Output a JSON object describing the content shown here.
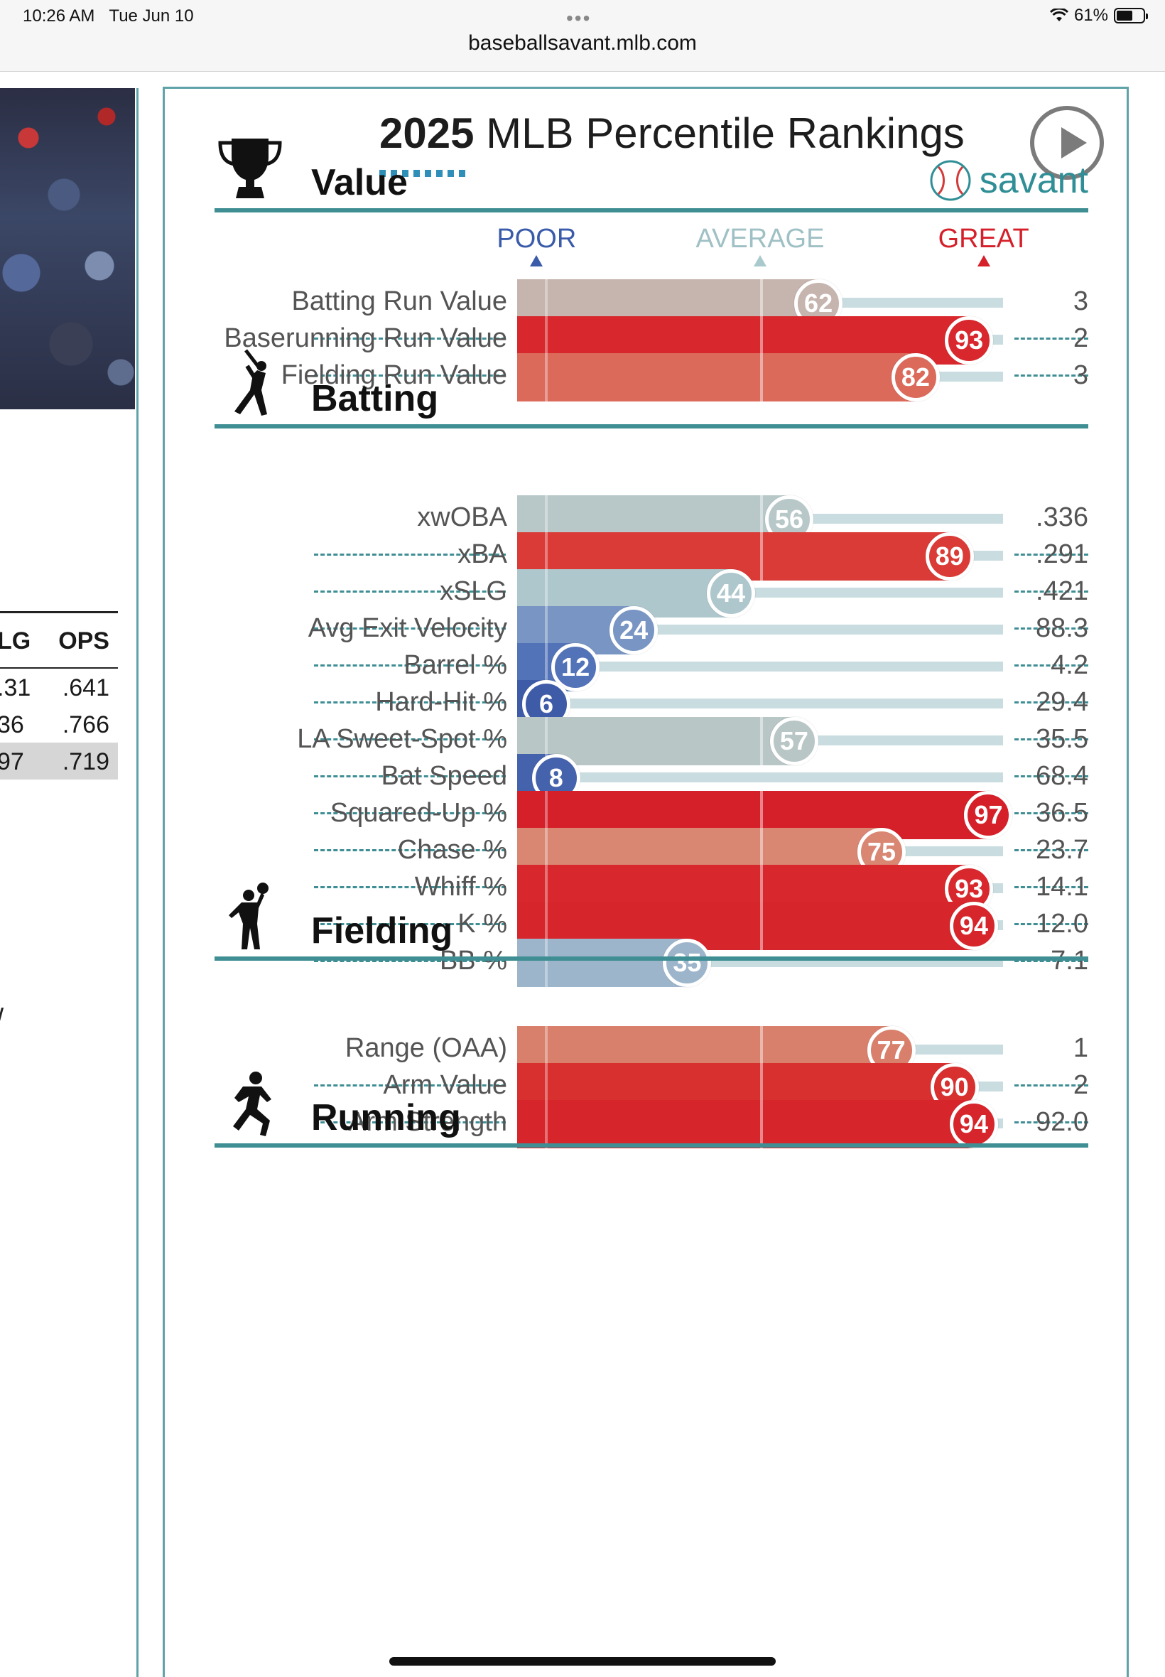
{
  "status_bar": {
    "time": "10:26 AM",
    "date": "Tue Jun 10",
    "battery": "61%",
    "battery_level": 0.61,
    "url": "baseballsavant.mlb.com"
  },
  "left_panel": {
    "table": {
      "headers": [
        "LG",
        "OPS"
      ],
      "rows": [
        [
          ".31",
          ".641"
        ],
        [
          "36",
          ".766"
        ],
        [
          "97",
          ".719"
        ]
      ]
    },
    "fragment": "/"
  },
  "card": {
    "title_year": "2025",
    "title_rest": "MLB Percentile Rankings",
    "logo_text": "savant",
    "scale": {
      "poor": "POOR",
      "average": "AVERAGE",
      "great": "GREAT"
    },
    "sections": [
      {
        "title": "Value",
        "icon": "trophy-icon",
        "metrics": [
          {
            "label": "Batting Run Value",
            "percentile": 62,
            "value": "3",
            "color": "#c6b4ae"
          },
          {
            "label": "Baserunning Run Value",
            "percentile": 93,
            "value": "2",
            "color": "#d8282d"
          },
          {
            "label": "Fielding Run Value",
            "percentile": 82,
            "value": "3",
            "color": "#db6a5b"
          }
        ]
      },
      {
        "title": "Batting",
        "icon": "batter-icon",
        "metrics": [
          {
            "label": "xwOBA",
            "percentile": 56,
            "value": ".336",
            "color": "#b8c8c9"
          },
          {
            "label": "xBA",
            "percentile": 89,
            "value": ".291",
            "color": "#da3b36"
          },
          {
            "label": "xSLG",
            "percentile": 44,
            "value": ".421",
            "color": "#aec7cc"
          },
          {
            "label": "Avg Exit Velocity",
            "percentile": 24,
            "value": "88.3",
            "color": "#7895c4"
          },
          {
            "label": "Barrel %",
            "percentile": 12,
            "value": "4.2",
            "color": "#5373b8"
          },
          {
            "label": "Hard-Hit %",
            "percentile": 6,
            "value": "29.4",
            "color": "#3e5ba8"
          },
          {
            "label": "LA Sweet-Spot %",
            "percentile": 57,
            "value": "35.5",
            "color": "#b9c6c6"
          },
          {
            "label": "Bat Speed",
            "percentile": 8,
            "value": "68.4",
            "color": "#4563ac"
          },
          {
            "label": "Squared-Up %",
            "percentile": 97,
            "value": "36.5",
            "color": "#d5202a"
          },
          {
            "label": "Chase %",
            "percentile": 75,
            "value": "23.7",
            "color": "#d98673"
          },
          {
            "label": "Whiff %",
            "percentile": 93,
            "value": "14.1",
            "color": "#d8282d"
          },
          {
            "label": "K %",
            "percentile": 94,
            "value": "12.0",
            "color": "#d7252c"
          },
          {
            "label": "BB %",
            "percentile": 35,
            "value": "7.1",
            "color": "#9db5cb"
          }
        ]
      },
      {
        "title": "Fielding",
        "icon": "fielder-icon",
        "metrics": [
          {
            "label": "Range (OAA)",
            "percentile": 77,
            "value": "1",
            "color": "#d8806c"
          },
          {
            "label": "Arm Value",
            "percentile": 90,
            "value": "2",
            "color": "#d82f2f"
          },
          {
            "label": "Arm Strength",
            "percentile": 94,
            "value": "92.0",
            "color": "#d7252c"
          }
        ]
      },
      {
        "title": "Running",
        "icon": "runner-icon",
        "metrics": []
      }
    ]
  }
}
